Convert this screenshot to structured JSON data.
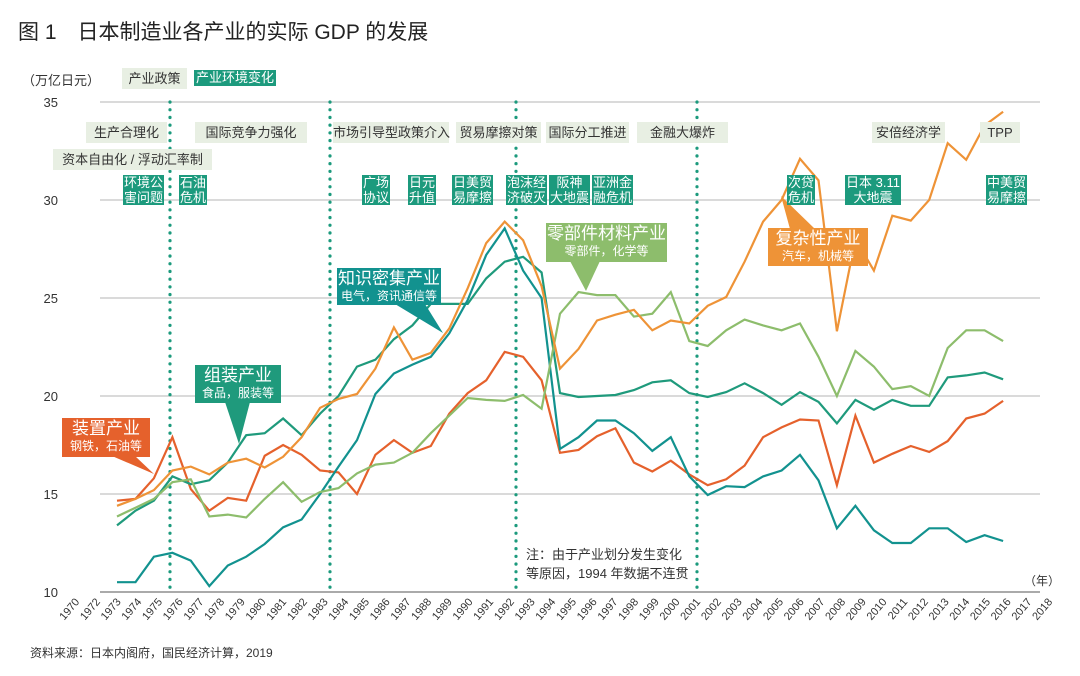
{
  "title": "图 1　日本制造业各产业的实际 GDP 的发展",
  "y_unit": "（万亿日元）",
  "x_unit": "（年）",
  "source": "资料来源：日本内阁府，国民经济计算，2019",
  "note": [
    "注：由于产业划分发生变化",
    "等原因，1994 年数据不连贯"
  ],
  "legend": {
    "policy": "产业政策",
    "environment": "产业环境变化"
  },
  "colors": {
    "policy_box": "#e8efe3",
    "environment_box": "#1c9a7d",
    "grid": "#bdbdbd",
    "divider": "#1c9a7d"
  },
  "policy_labels": [
    "生产合理化",
    "资本自由化 / 浮动汇率制",
    "国际竞争力强化",
    "市场引导型政策介入",
    "贸易摩擦对策",
    "国际分工推进",
    "金融大爆炸",
    "安倍经济学",
    "TPP"
  ],
  "environment_labels": [
    [
      "环境公",
      "害问题"
    ],
    [
      "石油",
      "危机"
    ],
    [
      "广场",
      "协议"
    ],
    [
      "日元",
      "升值"
    ],
    [
      "日美贸",
      "易摩擦"
    ],
    [
      "泡沫经",
      "济破灭"
    ],
    [
      "阪神",
      "大地震"
    ],
    [
      "亚洲金",
      "融危机"
    ],
    [
      "次贷",
      "危机"
    ],
    [
      "日本 3.11",
      "大地震"
    ],
    [
      "中美贸",
      "易摩擦"
    ]
  ],
  "chart_data": {
    "type": "line",
    "title": "日本制造业各产业的实际 GDP 的发展",
    "ylabel": "（万亿日元）",
    "xlabel": "（年）",
    "ylim": [
      10,
      35
    ],
    "yticks": [
      10,
      15,
      20,
      25,
      30,
      35
    ],
    "grid": "horizontal",
    "x_tick_labels": [
      "1970",
      "1972",
      "1973",
      "1974",
      "1975",
      "1976",
      "1977",
      "1978",
      "1979",
      "1980",
      "1981",
      "1982",
      "1983",
      "1984",
      "1985",
      "1986",
      "1987",
      "1988",
      "1989",
      "1990",
      "1991",
      "1992",
      "1993",
      "1994",
      "1995",
      "1996",
      "1997",
      "1998",
      "1999",
      "2000",
      "2001",
      "2002",
      "2003",
      "2004",
      "2005",
      "2006",
      "2007",
      "2008",
      "2009",
      "2010",
      "2011",
      "2012",
      "2013",
      "2014",
      "2015",
      "2016",
      "2017",
      "2018"
    ],
    "x": [
      1970,
      1971,
      1972,
      1973,
      1974,
      1975,
      1976,
      1977,
      1978,
      1979,
      1980,
      1981,
      1982,
      1983,
      1984,
      1985,
      1986,
      1987,
      1988,
      1989,
      1990,
      1991,
      1992,
      1993,
      1994,
      1995,
      1996,
      1997,
      1998,
      1999,
      2000,
      2001,
      2002,
      2003,
      2004,
      2005,
      2006,
      2007,
      2008,
      2009,
      2010,
      2011,
      2012,
      2013,
      2014,
      2015,
      2016,
      2017,
      2018
    ],
    "series": [
      {
        "name": "装置产业",
        "subtitle": "钢铁，石油等",
        "color": "#e5612c",
        "values": [
          14.66,
          14.75,
          15.8,
          17.9,
          15.25,
          14.15,
          14.8,
          14.66,
          16.95,
          17.5,
          17.0,
          16.2,
          16.1,
          15.0,
          17.0,
          17.75,
          17.1,
          17.45,
          19.1,
          20.15,
          20.8,
          22.25,
          22.0,
          20.8,
          17.1,
          17.25,
          17.95,
          18.35,
          16.6,
          16.15,
          16.7,
          16.0,
          15.45,
          15.75,
          16.45,
          17.9,
          18.4,
          18.8,
          18.75,
          15.45,
          19.0,
          16.6,
          17.05,
          17.45,
          17.15,
          17.7,
          18.85,
          19.1,
          19.75
        ]
      },
      {
        "name": "组装产业",
        "subtitle": "食品，服装等",
        "color": "#1f9a7c",
        "values": [
          13.4,
          14.15,
          14.66,
          15.9,
          15.5,
          15.7,
          16.6,
          18.0,
          18.1,
          18.85,
          18.0,
          19.1,
          20.0,
          21.5,
          21.85,
          22.9,
          23.6,
          24.7,
          24.7,
          24.7,
          26.0,
          26.85,
          27.1,
          26.3,
          20.15,
          19.95,
          20.0,
          20.05,
          20.3,
          20.7,
          20.8,
          20.15,
          19.95,
          20.2,
          20.65,
          20.15,
          19.55,
          20.2,
          19.7,
          18.6,
          19.8,
          19.3,
          19.8,
          19.5,
          19.5,
          20.95,
          21.05,
          21.2,
          20.85
        ]
      },
      {
        "name": "知识密集产业",
        "subtitle": "电气，资讯通信等",
        "color": "#12928f",
        "values": [
          10.5,
          10.5,
          11.8,
          12.0,
          11.6,
          10.3,
          11.35,
          11.8,
          12.45,
          13.3,
          13.7,
          15.0,
          16.4,
          17.75,
          20.1,
          21.15,
          21.6,
          22.0,
          23.2,
          24.9,
          27.2,
          28.55,
          26.4,
          25.0,
          17.3,
          17.9,
          18.75,
          18.75,
          18.1,
          17.2,
          17.9,
          15.9,
          14.95,
          15.4,
          15.35,
          15.9,
          16.2,
          17.0,
          15.7,
          13.25,
          14.4,
          13.15,
          12.5,
          12.5,
          13.25,
          13.25,
          12.55,
          12.9,
          12.6
        ]
      },
      {
        "name": "零部件材料产业",
        "subtitle": "零部件，化学等",
        "color": "#8dbd6c",
        "values": [
          13.85,
          14.3,
          14.75,
          15.6,
          15.75,
          13.85,
          13.95,
          13.8,
          14.75,
          15.6,
          14.6,
          15.1,
          15.3,
          16.05,
          16.5,
          16.6,
          17.1,
          18.1,
          19.0,
          19.9,
          19.8,
          19.75,
          20.05,
          19.35,
          24.2,
          25.3,
          25.15,
          25.15,
          24.05,
          24.2,
          25.3,
          22.8,
          22.55,
          23.35,
          23.9,
          23.6,
          23.35,
          23.7,
          22.0,
          20.0,
          22.3,
          21.5,
          20.35,
          20.5,
          20.0,
          22.45,
          23.35,
          23.35,
          22.8
        ]
      },
      {
        "name": "复杂性产业",
        "subtitle": "汽车，机械等",
        "color": "#ee9337",
        "values": [
          14.4,
          14.75,
          15.2,
          16.2,
          16.4,
          16.0,
          16.6,
          16.8,
          16.35,
          16.9,
          17.9,
          19.4,
          19.85,
          20.1,
          21.4,
          23.5,
          21.85,
          22.2,
          23.45,
          25.5,
          27.8,
          28.9,
          27.95,
          25.6,
          21.4,
          22.4,
          23.85,
          24.15,
          24.4,
          23.35,
          23.85,
          23.7,
          24.6,
          25.05,
          26.85,
          28.9,
          30.0,
          32.1,
          31.0,
          23.3,
          28.0,
          26.4,
          29.2,
          28.95,
          30.0,
          32.9,
          32.05,
          33.8,
          34.5
        ]
      }
    ]
  }
}
